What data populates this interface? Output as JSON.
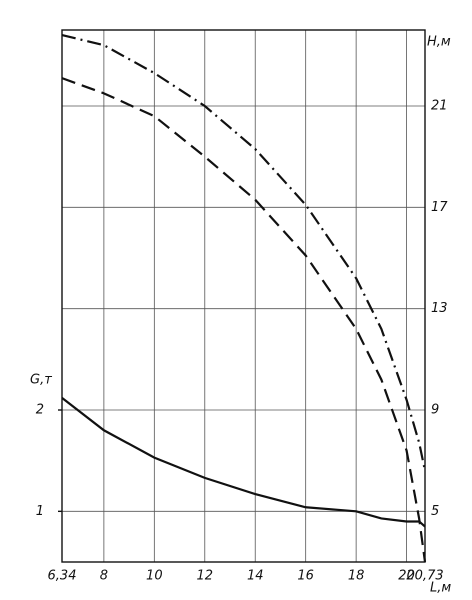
{
  "chart_data": {
    "type": "line",
    "x_label": "L,м",
    "y_label": "G,т",
    "y2_label": "H,м",
    "x": [
      6.34,
      8,
      10,
      12,
      14,
      16,
      18,
      19,
      20,
      20.5,
      20.73
    ],
    "series": [
      {
        "values": [
          23.8,
          23.4,
          22.3,
          21,
          19.3,
          17.1,
          14.2,
          12.2,
          9.4,
          7.7,
          6.6
        ],
        "axis": "y2",
        "color": "#111111",
        "dash": "dashdot"
      },
      {
        "values": [
          22.1,
          21.5,
          20.6,
          19,
          17.3,
          15.1,
          12.2,
          10.2,
          7.4,
          4.7,
          3
        ],
        "axis": "y2",
        "color": "#111111",
        "dash": "dashed"
      },
      {
        "values": [
          2.12,
          1.8,
          1.53,
          1.33,
          1.17,
          1.04,
          1.0,
          0.93,
          0.9,
          0.9,
          0.85
        ],
        "axis": "y",
        "color": "#111111",
        "dash": "solid"
      }
    ],
    "xlim": [
      6.34,
      20.73
    ],
    "xticks": [
      {
        "value": 6.34,
        "label": "6,34"
      },
      8,
      10,
      12,
      14,
      16,
      18,
      20,
      {
        "value": 20.73,
        "label": "20,73"
      }
    ],
    "ylim": [
      0.5,
      5.75
    ],
    "yticks": [
      1,
      2
    ],
    "y2lim": [
      3,
      24
    ],
    "y2ticks": [
      5,
      9,
      13,
      17,
      21
    ],
    "grid": true
  }
}
